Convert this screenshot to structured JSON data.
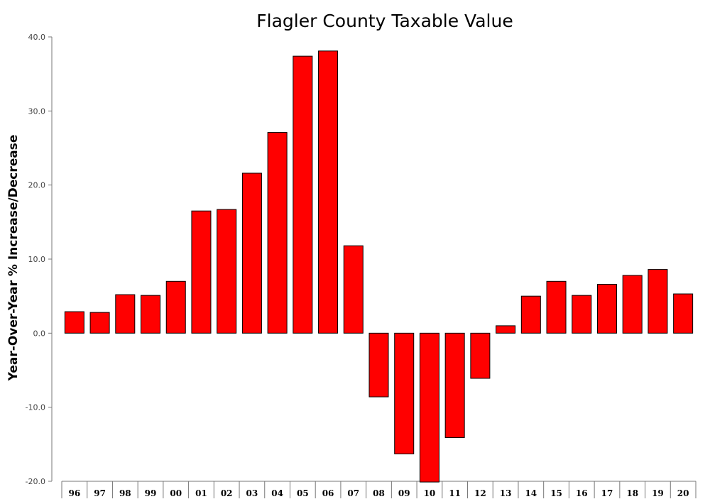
{
  "chart_data": {
    "type": "bar",
    "title": "Flagler County Taxable Value",
    "xlabel": "",
    "ylabel": "Year-Over-Year % Increase/Decrease",
    "ylim": [
      -20,
      40
    ],
    "yticks": [
      40,
      30,
      20,
      10,
      0,
      -10,
      -20
    ],
    "ytick_labels": [
      "40.0",
      "30.0",
      "20.0",
      "10.0",
      "0.0",
      "-10.0",
      "-20.0"
    ],
    "categories": [
      "96",
      "97",
      "98",
      "99",
      "00",
      "01",
      "02",
      "03",
      "04",
      "05",
      "06",
      "07",
      "08",
      "09",
      "10",
      "11",
      "12",
      "13",
      "14",
      "15",
      "16",
      "17",
      "18",
      "19",
      "20"
    ],
    "values": [
      2.9,
      2.8,
      5.2,
      5.1,
      7.0,
      16.5,
      16.7,
      21.6,
      27.1,
      37.4,
      38.1,
      11.8,
      -8.6,
      -16.3,
      -20.1,
      -14.1,
      -6.1,
      1.0,
      5.0,
      7.0,
      5.1,
      6.6,
      7.8,
      8.6,
      5.3
    ],
    "bar_color": "#ff0000",
    "grid": false,
    "legend": "none"
  }
}
